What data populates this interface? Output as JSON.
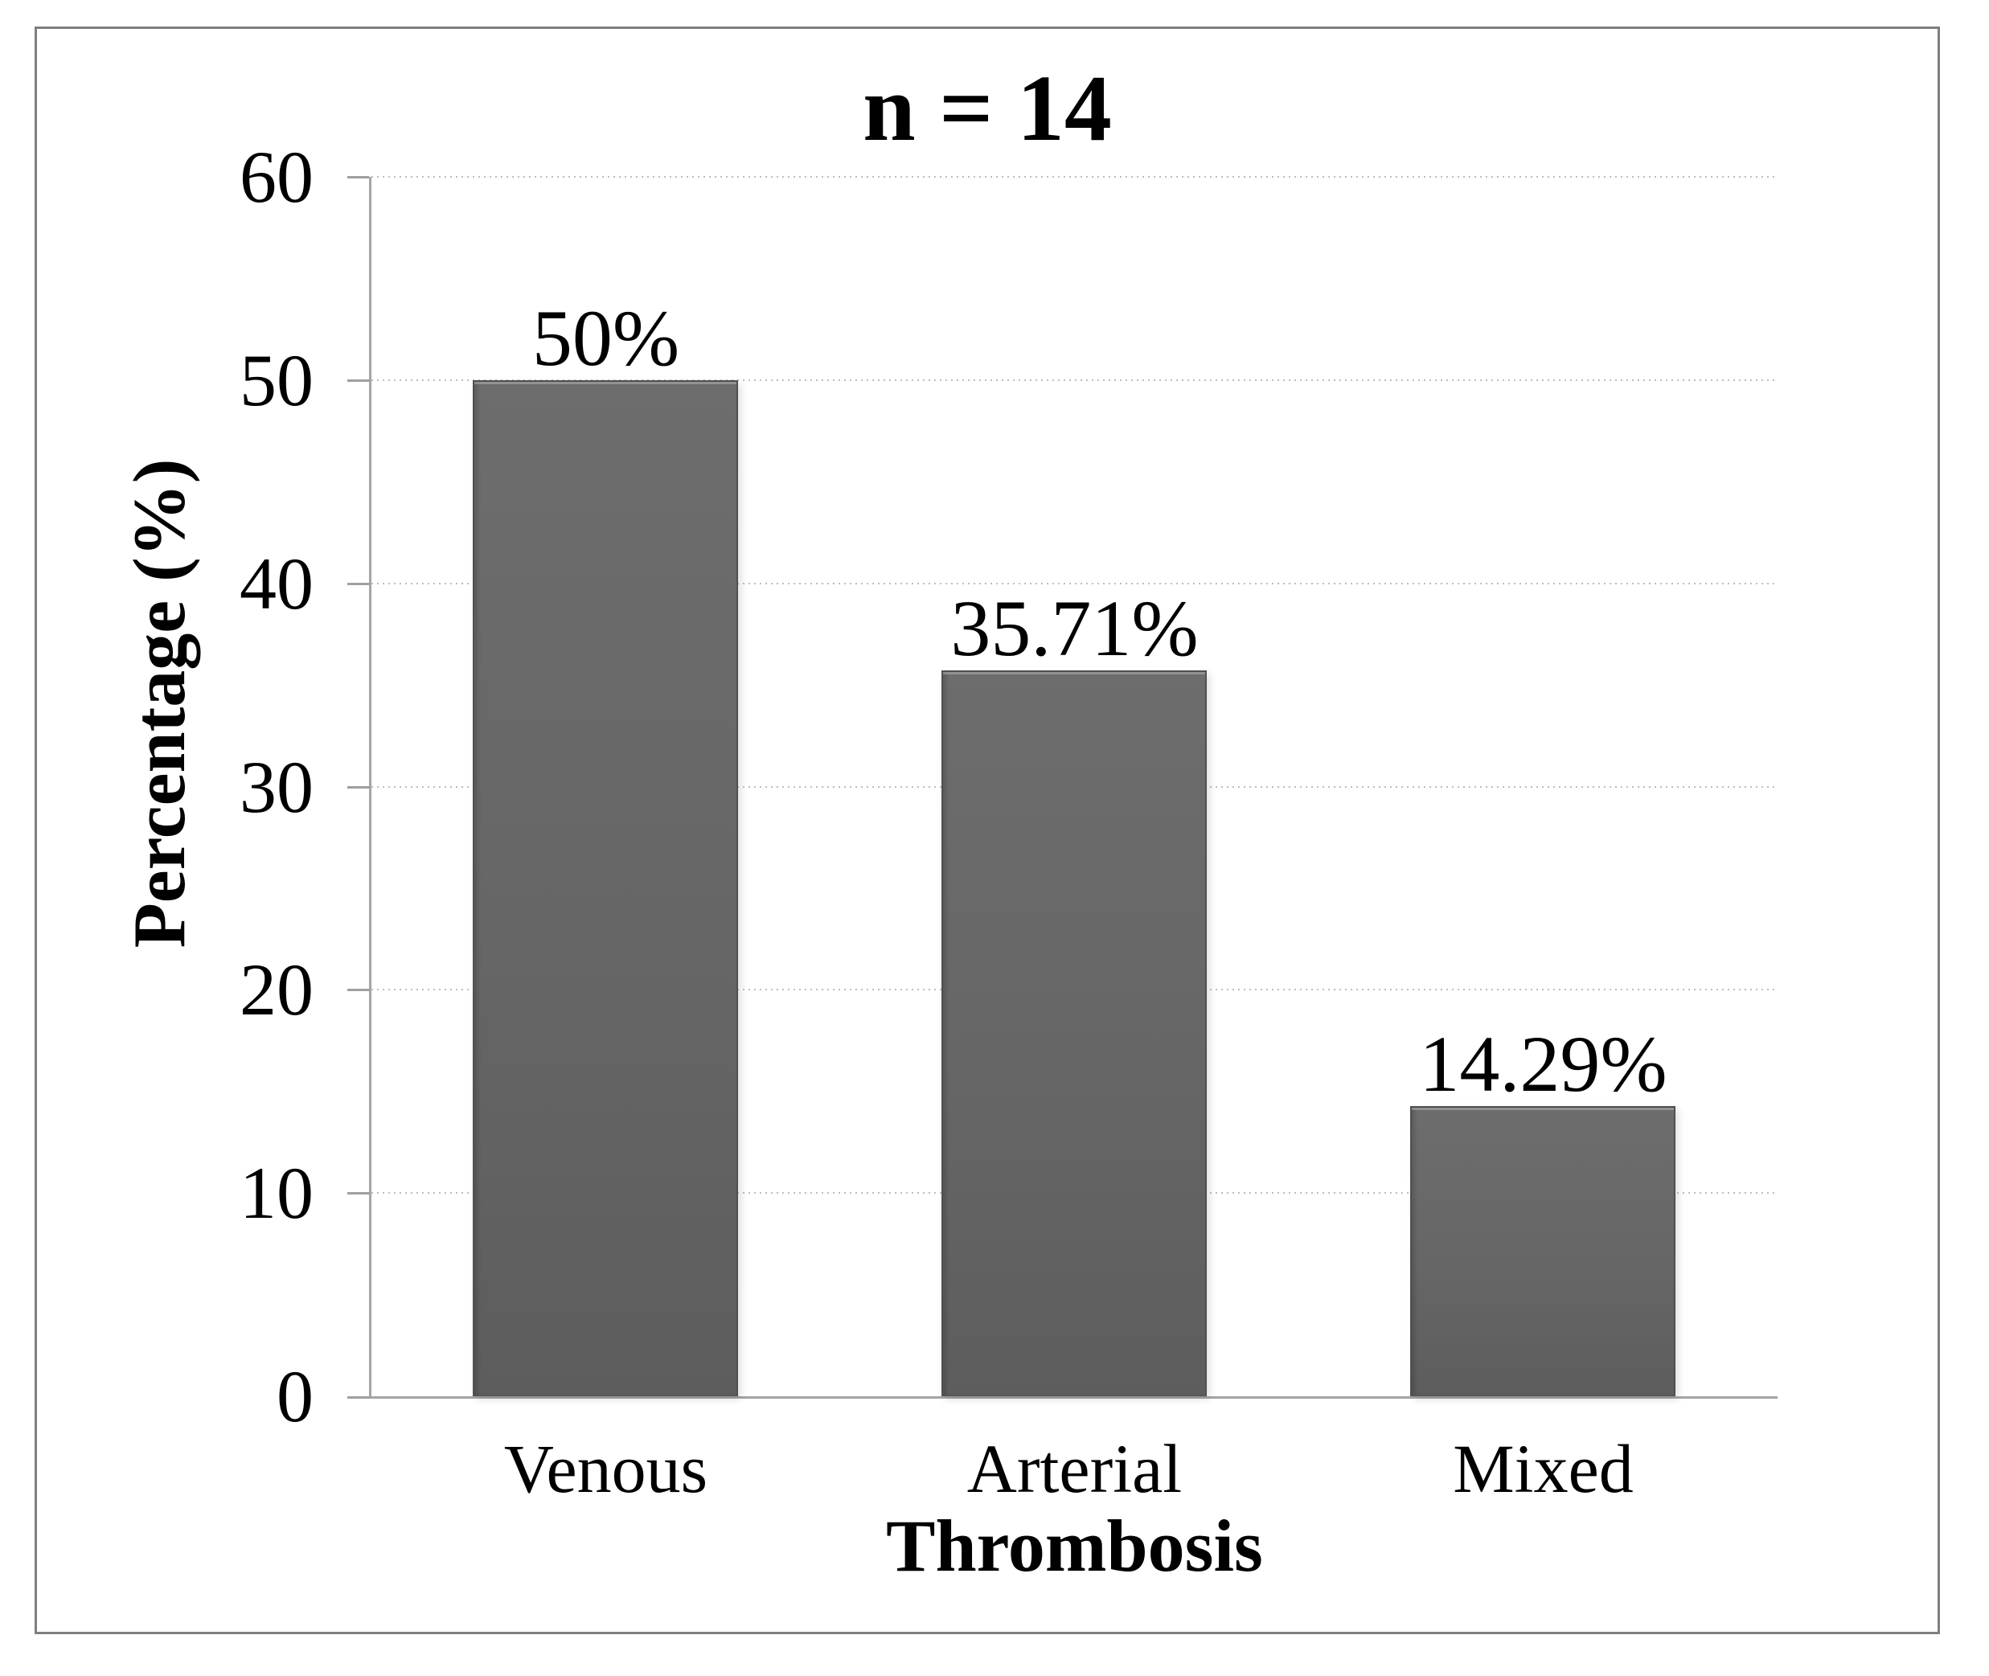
{
  "figure": {
    "frame_border_color": "#7f7f7f",
    "background_color": "#ffffff"
  },
  "chart_data": {
    "type": "bar",
    "title": "n = 14",
    "categories": [
      "Venous",
      "Arterial",
      "Mixed"
    ],
    "values": [
      50,
      35.71,
      14.29
    ],
    "value_labels": [
      "50%",
      "35.71%",
      "14.29%"
    ],
    "xlabel": "Thrombosis",
    "ylabel": "Percentage (%)",
    "ylim": [
      0,
      60
    ],
    "yticks": [
      0,
      10,
      20,
      30,
      40,
      50,
      60
    ],
    "ytick_labels": [
      "0",
      "10",
      "20",
      "30",
      "40",
      "50",
      "60"
    ],
    "grid": "horizontal dotted gridlines",
    "legend_position": "none",
    "bar_color": "#666666",
    "bar_border_color": "#4f4f4f",
    "gridline_color": "#bdbdbd",
    "axis_color": "#a5a5a5",
    "text_color": "#000000"
  }
}
